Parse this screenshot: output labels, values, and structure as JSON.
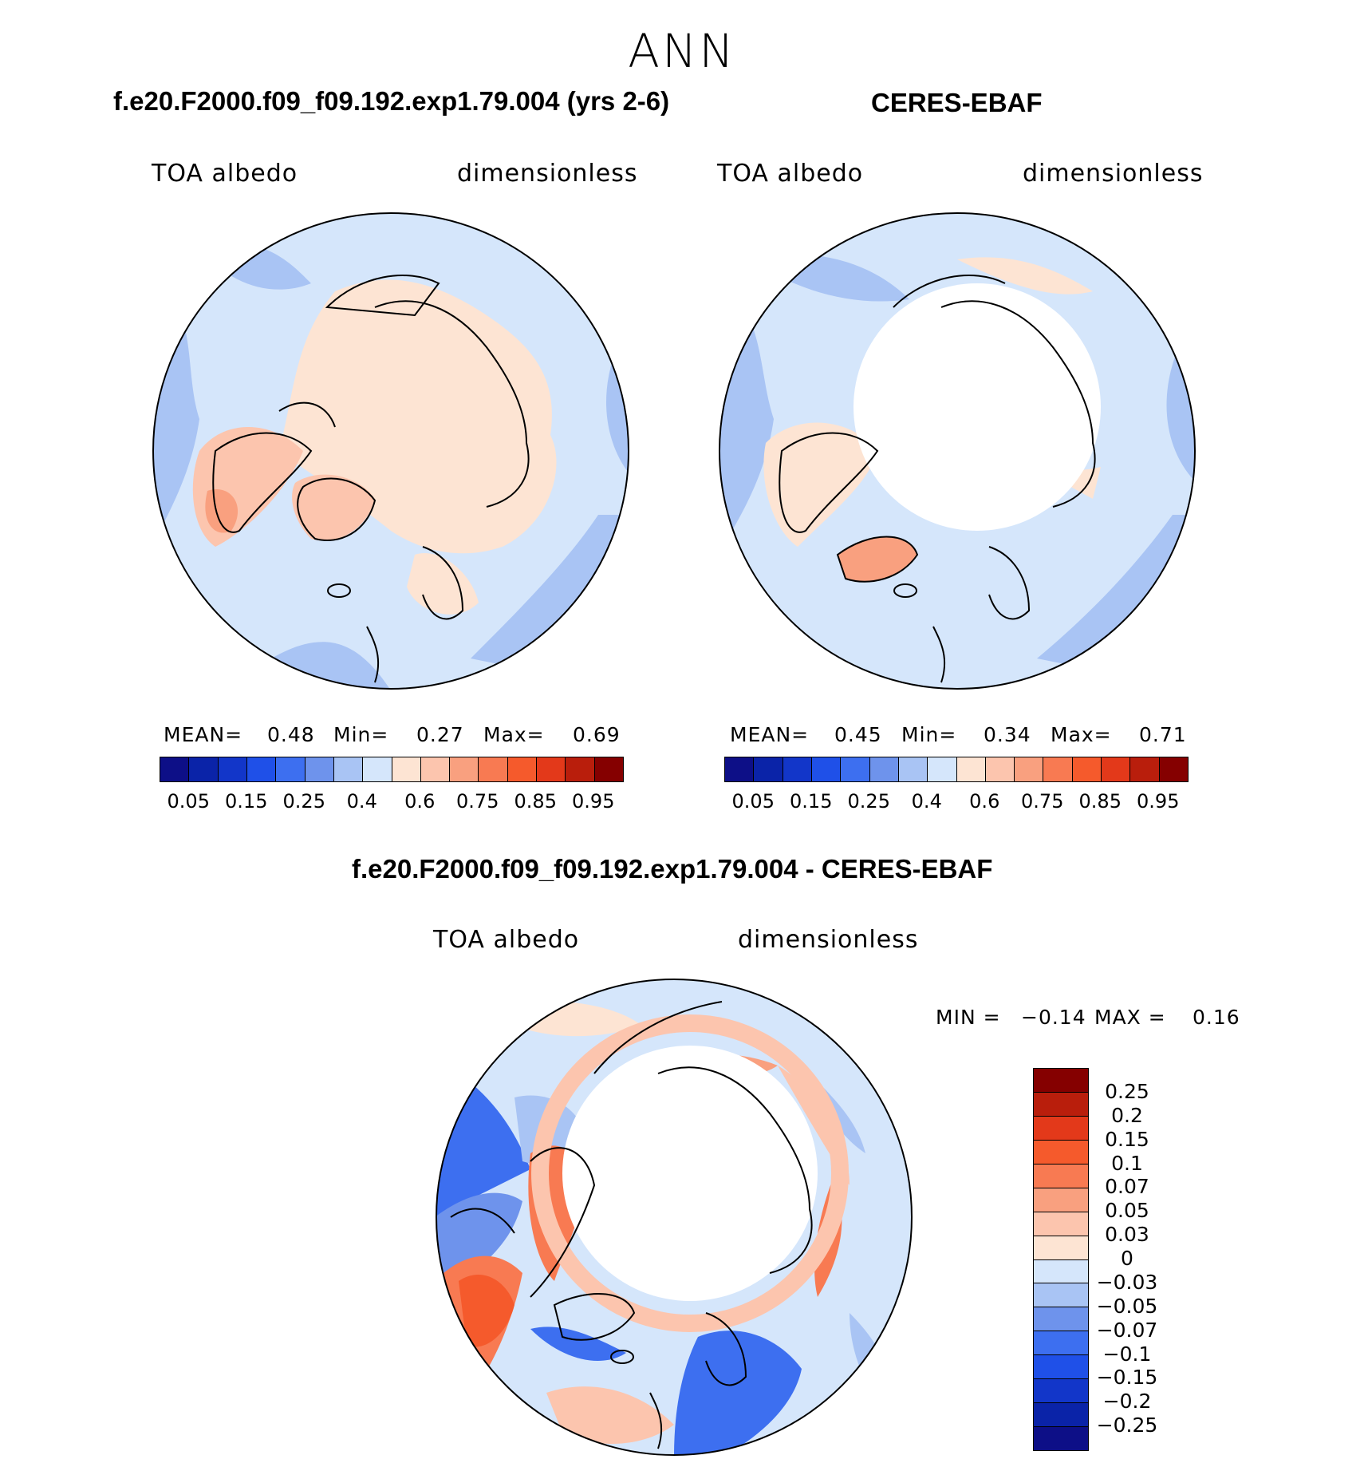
{
  "main_title": "ANN",
  "panels": [
    {
      "title": "f.e20.F2000.f09_f09.192.exp1.79.004 (yrs 2-6)",
      "variable": "TOA albedo",
      "units": "dimensionless",
      "mean_label": "MEAN=",
      "mean": "0.48",
      "min_label": "Min=",
      "min": "0.27",
      "max_label": "Max=",
      "max": "0.69"
    },
    {
      "title": "CERES-EBAF",
      "variable": "TOA albedo",
      "units": "dimensionless",
      "mean_label": "MEAN=",
      "mean": "0.45",
      "min_label": "Min=",
      "min": "0.34",
      "max_label": "Max=",
      "max": "0.71"
    }
  ],
  "colorbar": {
    "colors": [
      "#0d0f87",
      "#0a23a8",
      "#1236c9",
      "#1f50e8",
      "#3d6ff0",
      "#6e93ec",
      "#a9c4f4",
      "#d5e6fb",
      "#fde4d3",
      "#fcc5ae",
      "#f9a07f",
      "#f87a52",
      "#f55a2c",
      "#e3391a",
      "#b91e0c",
      "#850000"
    ],
    "ticks": [
      "0.05",
      "0.15",
      "0.25",
      "0.4",
      "0.6",
      "0.75",
      "0.85",
      "0.95"
    ]
  },
  "diff_panel": {
    "title": "f.e20.F2000.f09_f09.192.exp1.79.004 - CERES-EBAF",
    "variable": "TOA albedo",
    "units": "dimensionless",
    "min_label": "MIN =",
    "min": "−0.14",
    "max_label": "MAX =",
    "max": "0.16",
    "colorbar_colors": [
      "#850000",
      "#b91e0c",
      "#e3391a",
      "#f55a2c",
      "#f87a52",
      "#f9a07f",
      "#fcc5ae",
      "#fde4d3",
      "#d5e6fb",
      "#a9c4f4",
      "#6e93ec",
      "#3d6ff0",
      "#1f50e8",
      "#1236c9",
      "#0a23a8",
      "#0d0f87"
    ],
    "colorbar_ticks": [
      "0.25",
      "0.2",
      "0.15",
      "0.1",
      "0.07",
      "0.05",
      "0.03",
      "0",
      "−0.03",
      "−0.05",
      "−0.07",
      "−0.1",
      "−0.15",
      "−0.2",
      "−0.25"
    ]
  }
}
